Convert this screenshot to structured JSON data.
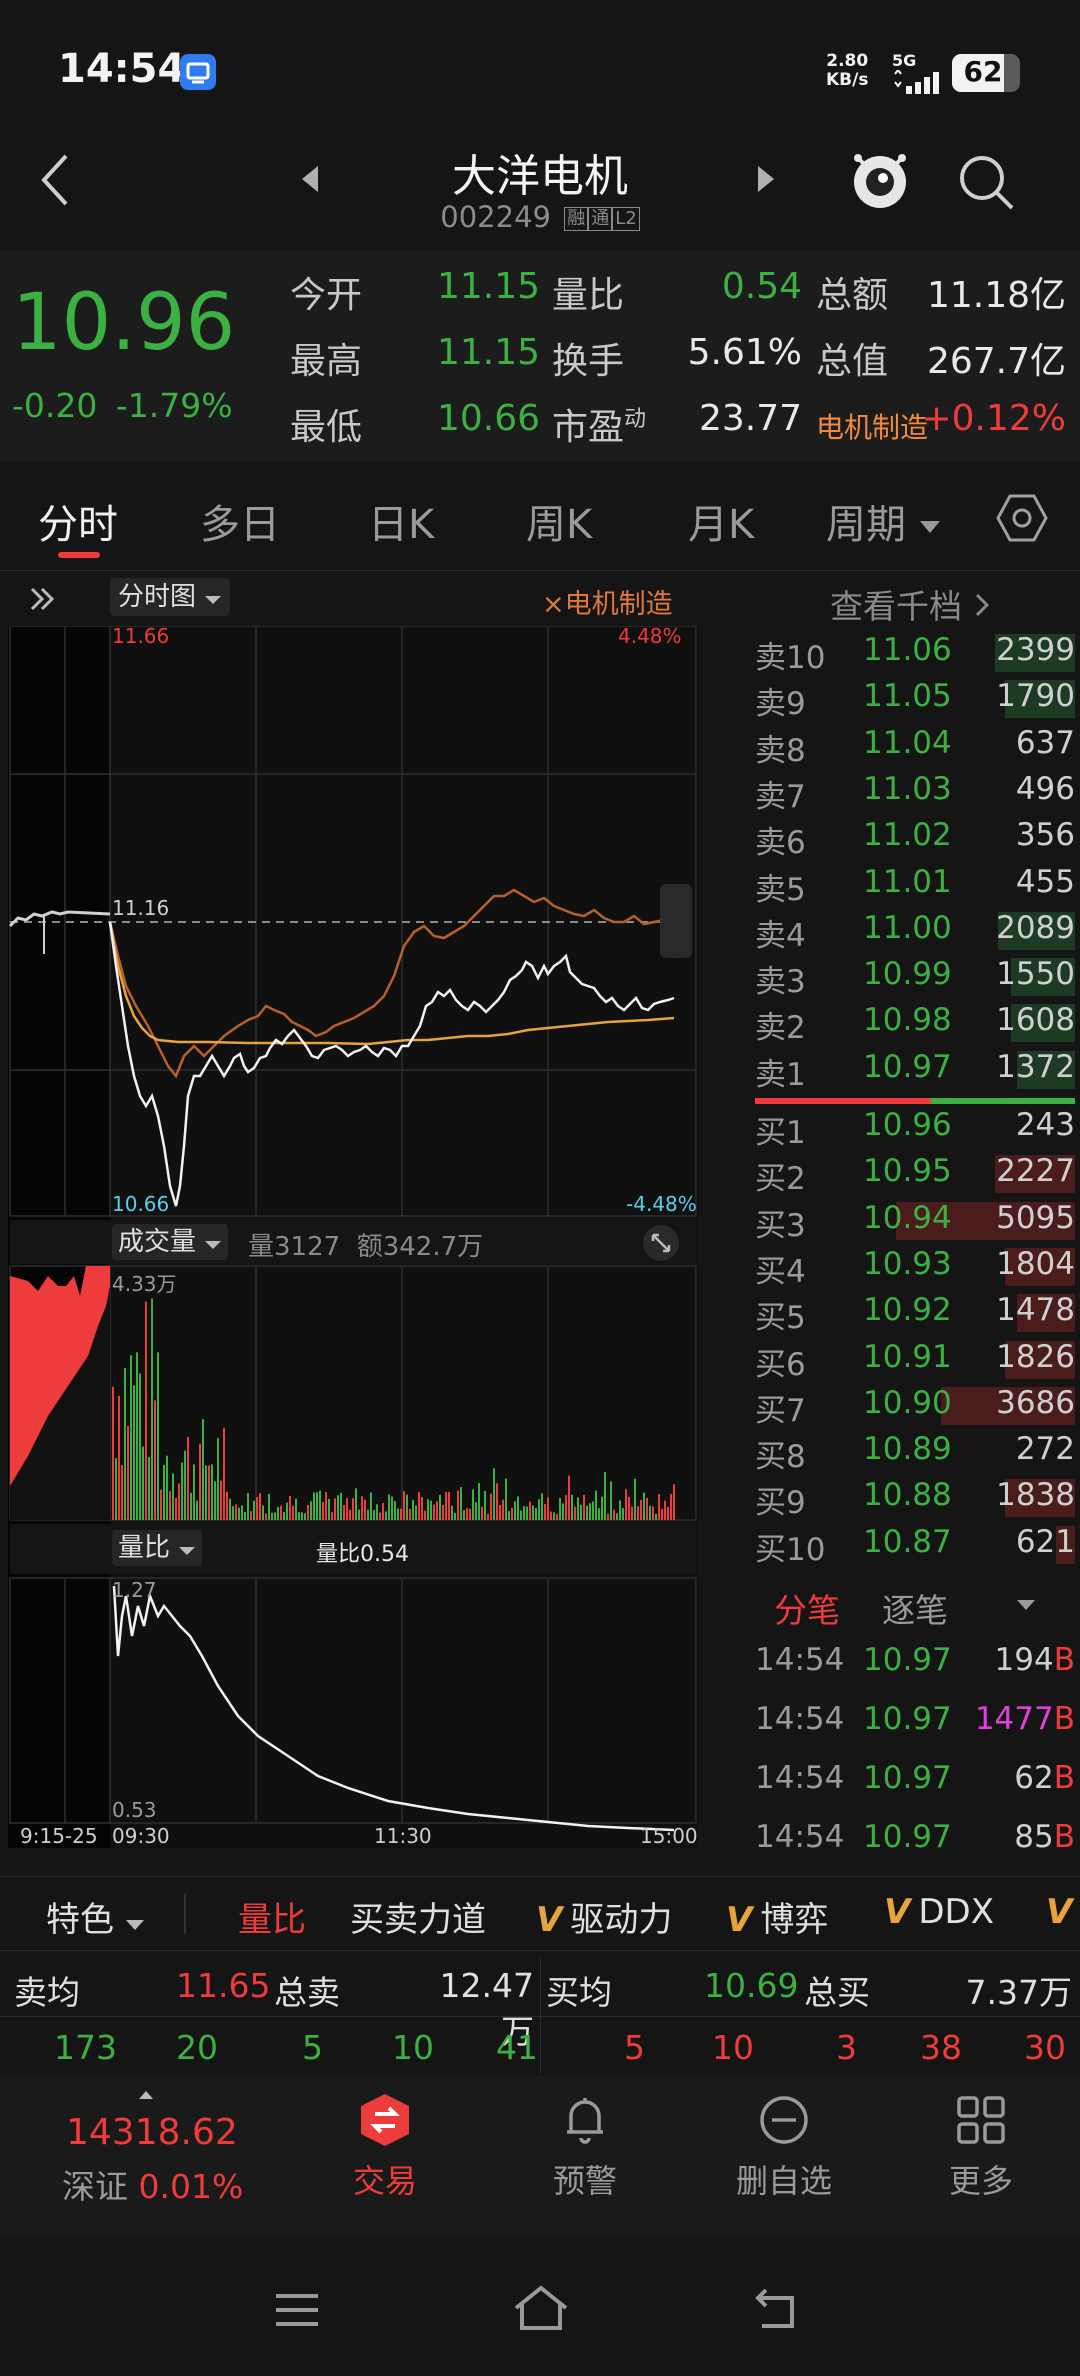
{
  "status_bar": {
    "time": "14:54",
    "net_speed_value": "2.80",
    "net_speed_unit": "KB/s",
    "network": "5G",
    "battery": "62"
  },
  "header": {
    "stock_name": "大洋电机",
    "stock_code": "002249",
    "tags": [
      "融",
      "通",
      "L2"
    ]
  },
  "quote": {
    "price": "10.96",
    "change": "-0.20",
    "change_pct": "-1.79%",
    "rows": [
      [
        {
          "label": "今开",
          "value": "11.15",
          "color": "green"
        },
        {
          "label": "量比",
          "value": "0.54",
          "color": "green"
        },
        {
          "label": "总额",
          "value": "11.18亿",
          "color": "white"
        }
      ],
      [
        {
          "label": "最高",
          "value": "11.15",
          "color": "green"
        },
        {
          "label": "换手",
          "value": "5.61%",
          "color": "white"
        },
        {
          "label": "总值",
          "value": "267.7亿",
          "color": "white"
        }
      ],
      [
        {
          "label": "最低",
          "value": "10.66",
          "color": "green"
        },
        {
          "label": "市盈",
          "value": "23.77",
          "color": "white"
        },
        {
          "label": "电机制造",
          "value": "+0.12%",
          "color": "red"
        }
      ]
    ],
    "pe_superscript": "动"
  },
  "tabs": [
    "分时",
    "多日",
    "日K",
    "周K",
    "月K",
    "周期"
  ],
  "chart": {
    "type_label": "分时图",
    "sector_label": "×电机制造",
    "price_top": "11.66",
    "pct_top": "4.48%",
    "price_ref": "11.16",
    "price_bottom": "10.66",
    "pct_bottom": "-4.48%",
    "volume_label": "成交量",
    "volume_stats": "量3127  额342.7万",
    "volume_max": "4.33万",
    "ratio_label": "量比",
    "ratio_value": "量比0.54",
    "ratio_top": "1.27",
    "ratio_bottom": "0.53",
    "time_labels": [
      "9:15-25",
      "09:30",
      "11:30",
      "15:00"
    ]
  },
  "order_book": {
    "header": "查看千档",
    "sells": [
      {
        "label": "卖10",
        "price": "11.06",
        "vol": "2399",
        "bar": 0.25
      },
      {
        "label": "卖9",
        "price": "11.05",
        "vol": "1790",
        "bar": 0.22
      },
      {
        "label": "卖8",
        "price": "11.04",
        "vol": "637",
        "bar": 0
      },
      {
        "label": "卖7",
        "price": "11.03",
        "vol": "496",
        "bar": 0
      },
      {
        "label": "卖6",
        "price": "11.02",
        "vol": "356",
        "bar": 0
      },
      {
        "label": "卖5",
        "price": "11.01",
        "vol": "455",
        "bar": 0
      },
      {
        "label": "卖4",
        "price": "11.00",
        "vol": "2089",
        "bar": 0.24
      },
      {
        "label": "卖3",
        "price": "10.99",
        "vol": "1550",
        "bar": 0.2
      },
      {
        "label": "卖2",
        "price": "10.98",
        "vol": "1608",
        "bar": 0.2
      },
      {
        "label": "卖1",
        "price": "10.97",
        "vol": "1372",
        "bar": 0.18
      }
    ],
    "buys": [
      {
        "label": "买1",
        "price": "10.96",
        "vol": "243",
        "bar": 0
      },
      {
        "label": "买2",
        "price": "10.95",
        "vol": "2227",
        "bar": 0.25
      },
      {
        "label": "买3",
        "price": "10.94",
        "vol": "5095",
        "bar": 0.56
      },
      {
        "label": "买4",
        "price": "10.93",
        "vol": "1804",
        "bar": 0.22
      },
      {
        "label": "买5",
        "price": "10.92",
        "vol": "1478",
        "bar": 0.18
      },
      {
        "label": "买6",
        "price": "10.91",
        "vol": "1826",
        "bar": 0.22
      },
      {
        "label": "买7",
        "price": "10.90",
        "vol": "3686",
        "bar": 0.42
      },
      {
        "label": "买8",
        "price": "10.89",
        "vol": "272",
        "bar": 0
      },
      {
        "label": "买9",
        "price": "10.88",
        "vol": "1838",
        "bar": 0.22
      },
      {
        "label": "买10",
        "price": "10.87",
        "vol": "621",
        "bar": 0.06
      }
    ]
  },
  "trades": {
    "tab_active": "分笔",
    "tab_inactive": "逐笔",
    "items": [
      {
        "time": "14:54",
        "price": "10.97",
        "vol": "194",
        "side": "B"
      },
      {
        "time": "14:54",
        "price": "10.97",
        "vol": "1477",
        "side": "B"
      },
      {
        "time": "14:54",
        "price": "10.97",
        "vol": "62",
        "side": "B"
      },
      {
        "time": "14:54",
        "price": "10.97",
        "vol": "85",
        "side": "B"
      }
    ]
  },
  "indicator_bar": {
    "feature_label": "特色",
    "items": [
      "量比",
      "买卖力道",
      "驱动力",
      "博弈",
      "DDX"
    ],
    "vip_mark": "V"
  },
  "summary": {
    "sell_avg_label": "卖均",
    "sell_avg": "11.65",
    "total_sell_label": "总卖",
    "total_sell": "12.47万",
    "buy_avg_label": "买均",
    "buy_avg": "10.69",
    "total_buy_label": "总买",
    "total_buy": "7.37万",
    "sell_counts": [
      "173",
      "20",
      "5",
      "10",
      "41"
    ],
    "buy_counts": [
      "5",
      "10",
      "3",
      "38",
      "30"
    ]
  },
  "bottom_nav": {
    "index_value": "14318.62",
    "index_name": "深证",
    "index_change": "0.01%",
    "items": [
      "交易",
      "预警",
      "删自选",
      "更多"
    ]
  }
}
